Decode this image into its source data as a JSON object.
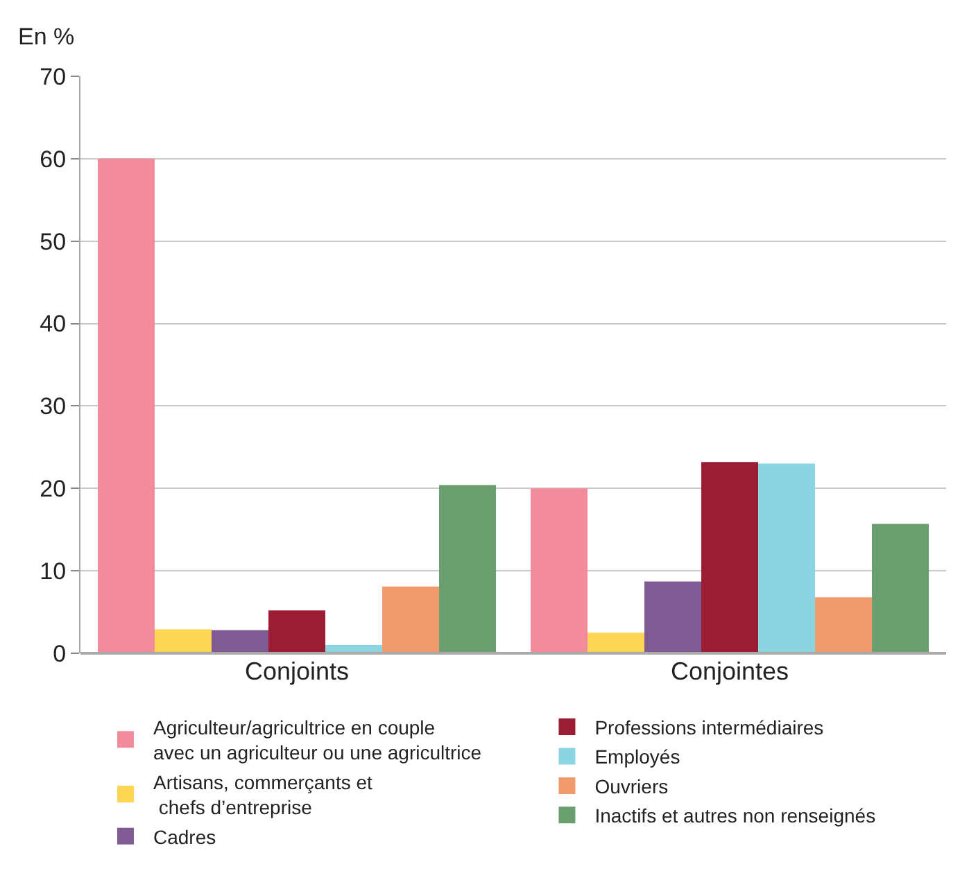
{
  "chart_data": {
    "type": "bar",
    "ylabel": "En %",
    "categories": [
      "Conjoints",
      "Conjointes"
    ],
    "series": [
      {
        "name": "Agriculteur/agricultrice en couple\navec un agriculteur ou une agricultrice",
        "color": "#f28b9c",
        "values": [
          60,
          20
        ]
      },
      {
        "name": "Artisans, commerçants et\n chefs d’entreprise",
        "color": "#fcd654",
        "values": [
          2.9,
          2.5
        ]
      },
      {
        "name": "Cadres",
        "color": "#7f5a93",
        "values": [
          2.8,
          8.7
        ]
      },
      {
        "name": "Professions intermédiaires",
        "color": "#9b1d33",
        "values": [
          5.2,
          23.2
        ]
      },
      {
        "name": "Employés",
        "color": "#8bd4e2",
        "values": [
          1.0,
          23.0
        ]
      },
      {
        "name": "Ouvriers",
        "color": "#f29a6c",
        "values": [
          8.1,
          6.8
        ]
      },
      {
        "name": "Inactifs et autres non renseignés",
        "color": "#6a9e6f",
        "values": [
          20.4,
          15.7
        ]
      }
    ],
    "ylim": [
      0,
      70
    ],
    "yticks": [
      0,
      10,
      20,
      30,
      40,
      50,
      60,
      70
    ],
    "grid": "y",
    "legend": "bottom"
  }
}
